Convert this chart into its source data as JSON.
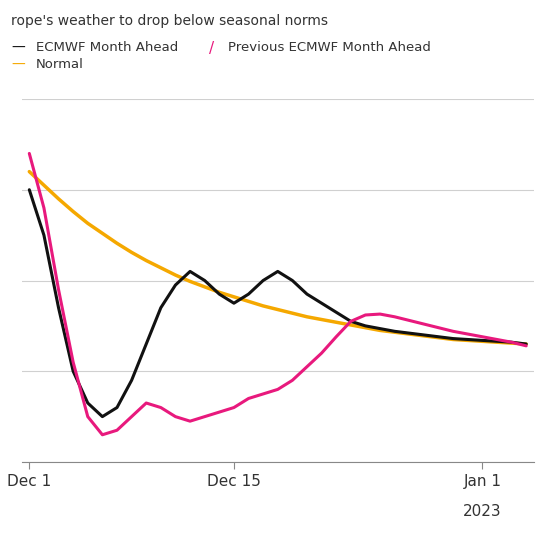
{
  "title_line1": "rope's weather to drop below seasonal norms",
  "background_color": "#ffffff",
  "grid_color": "#d0d0d0",
  "text_color": "#333333",
  "yellow_data": [
    3.2,
    3.05,
    2.9,
    2.76,
    2.63,
    2.52,
    2.41,
    2.31,
    2.22,
    2.14,
    2.06,
    1.99,
    1.93,
    1.87,
    1.82,
    1.77,
    1.72,
    1.68,
    1.64,
    1.6,
    1.57,
    1.54,
    1.51,
    1.48,
    1.45,
    1.43,
    1.41,
    1.39,
    1.37,
    1.35,
    1.34,
    1.33,
    1.32,
    1.31,
    1.3
  ],
  "black_data": [
    3.0,
    2.5,
    1.7,
    1.0,
    0.65,
    0.5,
    0.6,
    0.9,
    1.3,
    1.7,
    1.95,
    2.1,
    2.0,
    1.85,
    1.75,
    1.85,
    2.0,
    2.1,
    2.0,
    1.85,
    1.75,
    1.65,
    1.55,
    1.5,
    1.47,
    1.44,
    1.42,
    1.4,
    1.38,
    1.36,
    1.35,
    1.34,
    1.33,
    1.32,
    1.3
  ],
  "pink_data": [
    3.4,
    2.8,
    1.9,
    1.1,
    0.5,
    0.3,
    0.35,
    0.5,
    0.65,
    0.6,
    0.5,
    0.45,
    0.5,
    0.55,
    0.6,
    0.7,
    0.75,
    0.8,
    0.9,
    1.05,
    1.2,
    1.38,
    1.55,
    1.62,
    1.63,
    1.6,
    1.56,
    1.52,
    1.48,
    1.44,
    1.41,
    1.38,
    1.35,
    1.32,
    1.28
  ],
  "ylim": [
    0.0,
    4.0
  ],
  "xlim": [
    -0.5,
    34.5
  ],
  "x_ticks": [
    0,
    14,
    31
  ],
  "x_tick_labels": [
    "Dec 1",
    "Dec 15",
    "Jan 1"
  ],
  "figsize": [
    5.5,
    5.5
  ],
  "dpi": 100
}
